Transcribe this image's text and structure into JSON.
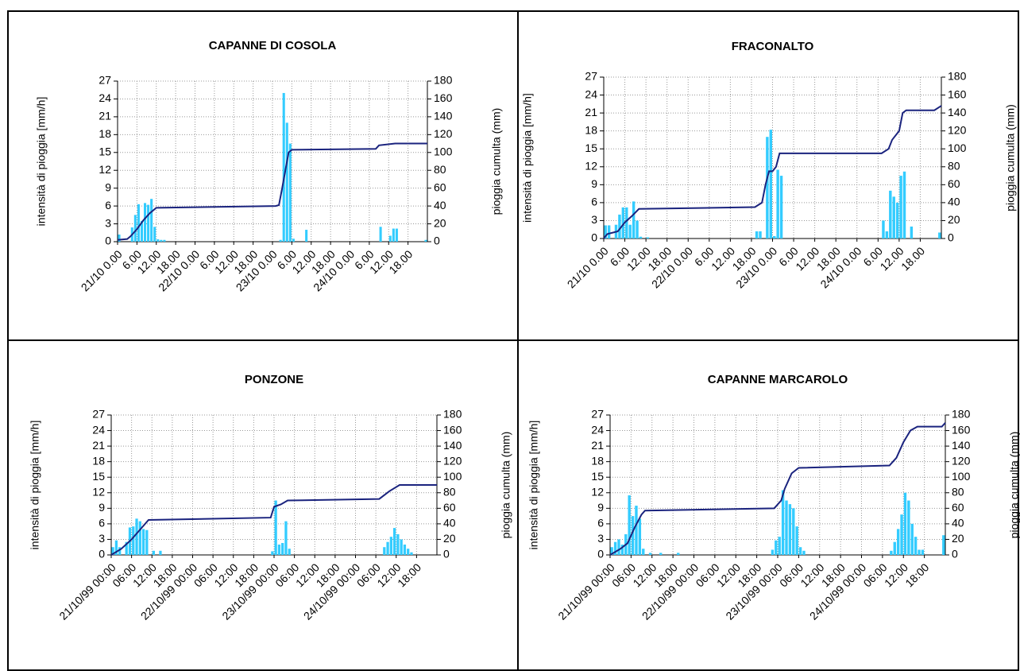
{
  "chart_data": [
    {
      "type": "bar",
      "title": "CAPANNE DI COSOLA",
      "y_label": "intensità di pioggia [mm/h]",
      "y2_label": "pioggia cumulta (mm)",
      "xlim": [
        0,
        96
      ],
      "xticks": [
        {
          "value": 0,
          "label": "21/10 0.00"
        },
        {
          "value": 6,
          "label": "6.00"
        },
        {
          "value": 12,
          "label": "12.00"
        },
        {
          "value": 18,
          "label": "18.00"
        },
        {
          "value": 24,
          "label": "22/10 0.00"
        },
        {
          "value": 30,
          "label": "6.00"
        },
        {
          "value": 36,
          "label": "12.00"
        },
        {
          "value": 42,
          "label": "18.00"
        },
        {
          "value": 48,
          "label": "23/10 0.00"
        },
        {
          "value": 54,
          "label": "6.00"
        },
        {
          "value": 60,
          "label": "12.00"
        },
        {
          "value": 66,
          "label": "18.00"
        },
        {
          "value": 72,
          "label": "24/10 0.00"
        },
        {
          "value": 78,
          "label": "6.00"
        },
        {
          "value": 84,
          "label": "12.00"
        },
        {
          "value": 90,
          "label": "18.00"
        }
      ],
      "ylim": [
        0,
        27
      ],
      "yticks": [
        0,
        3,
        6,
        9,
        12,
        15,
        18,
        21,
        24,
        27
      ],
      "y2lim": [
        0,
        180
      ],
      "y2ticks": [
        0,
        20,
        40,
        60,
        80,
        100,
        120,
        140,
        160,
        180
      ],
      "grid": true,
      "series": [
        {
          "type": "bar",
          "color": "#33ccff",
          "x": [
            0,
            4,
            5,
            6,
            7,
            8,
            9,
            10,
            11,
            12,
            13,
            14,
            50,
            51,
            52,
            53,
            54,
            58,
            81,
            84,
            85,
            86,
            95
          ],
          "values": [
            1.2,
            2.4,
            4.5,
            6.3,
            3.5,
            6.5,
            6.2,
            7.2,
            2.5,
            0.4,
            0.3,
            0.3,
            0.3,
            25,
            20,
            16.5,
            0.5,
            2,
            2.5,
            1,
            2.2,
            2.2,
            0.3
          ]
        },
        {
          "type": "line",
          "axis": "y2",
          "color": "#1a237e",
          "x": [
            0,
            3,
            4,
            6,
            8,
            10,
            12,
            49,
            50,
            51,
            52,
            53,
            54,
            80,
            81,
            86,
            96
          ],
          "values": [
            2,
            3,
            6,
            14,
            24,
            32,
            38,
            40,
            41,
            60,
            80,
            100,
            103,
            104,
            108,
            110,
            110
          ]
        }
      ]
    },
    {
      "type": "bar",
      "title": "FRACONALTO",
      "y_label": "intensità di pioggia [mm/h]",
      "y2_label": "pioggia cumulta (mm)",
      "xlim": [
        0,
        96
      ],
      "xticks": [
        {
          "value": 0,
          "label": "21/10 0.00"
        },
        {
          "value": 6,
          "label": "6.00"
        },
        {
          "value": 12,
          "label": "12.00"
        },
        {
          "value": 18,
          "label": "18.00"
        },
        {
          "value": 24,
          "label": "22/10 0.00"
        },
        {
          "value": 30,
          "label": "6.00"
        },
        {
          "value": 36,
          "label": "12.00"
        },
        {
          "value": 42,
          "label": "18.00"
        },
        {
          "value": 48,
          "label": "23/10 0.00"
        },
        {
          "value": 54,
          "label": "6.00"
        },
        {
          "value": 60,
          "label": "12.00"
        },
        {
          "value": 66,
          "label": "18.00"
        },
        {
          "value": 72,
          "label": "24/10 0.00"
        },
        {
          "value": 78,
          "label": "6.00"
        },
        {
          "value": 84,
          "label": "12.00"
        },
        {
          "value": 90,
          "label": "18.00"
        }
      ],
      "ylim": [
        0,
        27
      ],
      "yticks": [
        0,
        3,
        6,
        9,
        12,
        15,
        18,
        21,
        24,
        27
      ],
      "y2lim": [
        0,
        180
      ],
      "y2ticks": [
        0,
        20,
        40,
        60,
        80,
        100,
        120,
        140,
        160,
        180
      ],
      "grid": true,
      "series": [
        {
          "type": "bar",
          "color": "#33ccff",
          "x": [
            0,
            1,
            3,
            4,
            5,
            6,
            7,
            8,
            9,
            10,
            12,
            43,
            44,
            46,
            47,
            48,
            49,
            50,
            79,
            80,
            81,
            82,
            83,
            84,
            85,
            87,
            95
          ],
          "values": [
            2.2,
            2.2,
            2.3,
            4,
            5.2,
            5.2,
            2.3,
            6.2,
            3,
            0.3,
            0.2,
            1.2,
            1.2,
            17,
            18.2,
            0.4,
            11.5,
            10.5,
            3,
            1.2,
            8,
            7,
            6,
            10.5,
            11.2,
            2,
            1
          ]
        },
        {
          "type": "line",
          "axis": "y2",
          "color": "#1a237e",
          "x": [
            0,
            1,
            4,
            6,
            8,
            10,
            43,
            45,
            46,
            47,
            48,
            49,
            50,
            79,
            81,
            82,
            84,
            85,
            86,
            94,
            96
          ],
          "values": [
            0,
            5,
            8,
            18,
            25,
            33,
            35,
            40,
            60,
            75,
            75,
            80,
            95,
            95,
            100,
            110,
            120,
            140,
            143,
            143,
            148
          ]
        }
      ]
    },
    {
      "type": "bar",
      "title": "PONZONE",
      "y_label": "intensità di pioggia [mm/h]",
      "y2_label": "pioggia cumulta (mm)",
      "xlim": [
        0,
        96
      ],
      "xticks": [
        {
          "value": 0,
          "label": "21/10/99 00:00"
        },
        {
          "value": 6,
          "label": "06:00"
        },
        {
          "value": 12,
          "label": "12:00"
        },
        {
          "value": 18,
          "label": "18:00"
        },
        {
          "value": 24,
          "label": "22/10/99 00:00"
        },
        {
          "value": 30,
          "label": "06:00"
        },
        {
          "value": 36,
          "label": "12:00"
        },
        {
          "value": 42,
          "label": "18:00"
        },
        {
          "value": 48,
          "label": "23/10/99 00:00"
        },
        {
          "value": 54,
          "label": "06:00"
        },
        {
          "value": 60,
          "label": "12:00"
        },
        {
          "value": 66,
          "label": "18:00"
        },
        {
          "value": 72,
          "label": "24/10/99 00:00"
        },
        {
          "value": 78,
          "label": "06:00"
        },
        {
          "value": 84,
          "label": "12:00"
        },
        {
          "value": 90,
          "label": "18:00"
        }
      ],
      "ylim": [
        0,
        27
      ],
      "yticks": [
        0,
        3,
        6,
        9,
        12,
        15,
        18,
        21,
        24,
        27
      ],
      "y2lim": [
        0,
        180
      ],
      "y2ticks": [
        0,
        20,
        40,
        60,
        80,
        100,
        120,
        140,
        160,
        180
      ],
      "grid": true,
      "series": [
        {
          "type": "bar",
          "color": "#33ccff",
          "x": [
            0,
            1,
            2,
            4,
            5,
            6,
            7,
            8,
            9,
            10,
            12,
            14,
            47,
            48,
            49,
            50,
            51,
            52,
            80,
            81,
            82,
            83,
            84,
            85,
            86,
            87,
            88
          ],
          "values": [
            1.5,
            2.8,
            1.5,
            2.5,
            5.3,
            5.5,
            7,
            6.5,
            5,
            4.8,
            0.8,
            0.8,
            0.7,
            10.5,
            2,
            2.3,
            6.5,
            1.2,
            1.5,
            2.5,
            3.5,
            5.2,
            4,
            3,
            2,
            1.2,
            0.5
          ]
        },
        {
          "type": "line",
          "axis": "y2",
          "color": "#1a237e",
          "x": [
            0,
            3,
            6,
            9,
            11,
            47,
            48,
            50,
            52,
            79,
            82,
            85,
            96
          ],
          "values": [
            0,
            8,
            20,
            35,
            45,
            48,
            62,
            65,
            70,
            72,
            82,
            90,
            90
          ]
        }
      ]
    },
    {
      "type": "bar",
      "title": "CAPANNE MARCAROLO",
      "y_label": "intensità di pioggia [mm/h]",
      "y2_label": "pioggia cumulta (mm)",
      "xlim": [
        0,
        96
      ],
      "xticks": [
        {
          "value": 0,
          "label": "21/10/99 00:00"
        },
        {
          "value": 6,
          "label": "06:00"
        },
        {
          "value": 12,
          "label": "12:00"
        },
        {
          "value": 18,
          "label": "18:00"
        },
        {
          "value": 24,
          "label": "22/10/99 00:00"
        },
        {
          "value": 30,
          "label": "06:00"
        },
        {
          "value": 36,
          "label": "12:00"
        },
        {
          "value": 42,
          "label": "18:00"
        },
        {
          "value": 48,
          "label": "23/10/99 00:00"
        },
        {
          "value": 54,
          "label": "06:00"
        },
        {
          "value": 60,
          "label": "12:00"
        },
        {
          "value": 66,
          "label": "18:00"
        },
        {
          "value": 72,
          "label": "24/10/99 00:00"
        },
        {
          "value": 78,
          "label": "06:00"
        },
        {
          "value": 84,
          "label": "12:00"
        },
        {
          "value": 90,
          "label": "18:00"
        }
      ],
      "ylim": [
        0,
        27
      ],
      "yticks": [
        0,
        3,
        6,
        9,
        12,
        15,
        18,
        21,
        24,
        27
      ],
      "y2lim": [
        0,
        180
      ],
      "y2ticks": [
        0,
        20,
        40,
        60,
        80,
        100,
        120,
        140,
        160,
        180
      ],
      "grid": true,
      "series": [
        {
          "type": "bar",
          "color": "#33ccff",
          "x": [
            0,
            1,
            2,
            3,
            4,
            5,
            6,
            7,
            8,
            9,
            11,
            14,
            19,
            46,
            47,
            48,
            49,
            50,
            51,
            52,
            53,
            54,
            55,
            80,
            81,
            82,
            83,
            84,
            85,
            86,
            87,
            88,
            89,
            95
          ],
          "values": [
            1.5,
            2.5,
            3,
            2,
            4,
            11.5,
            7.5,
            9.5,
            7,
            1.2,
            0.4,
            0.4,
            0.4,
            1,
            2.8,
            3.5,
            12.5,
            10.5,
            9.8,
            9,
            5.5,
            1.5,
            0.8,
            0.8,
            2.5,
            5,
            7.8,
            12,
            10.5,
            6,
            3.5,
            1,
            1,
            3.8
          ]
        },
        {
          "type": "line",
          "axis": "y2",
          "color": "#1a237e",
          "x": [
            0,
            3,
            5,
            7,
            9,
            10,
            47,
            49,
            50,
            52,
            54,
            80,
            82,
            84,
            86,
            88,
            95,
            96
          ],
          "values": [
            0,
            8,
            15,
            35,
            52,
            57,
            60,
            70,
            85,
            105,
            112,
            115,
            125,
            145,
            160,
            165,
            165,
            170
          ]
        }
      ]
    }
  ]
}
